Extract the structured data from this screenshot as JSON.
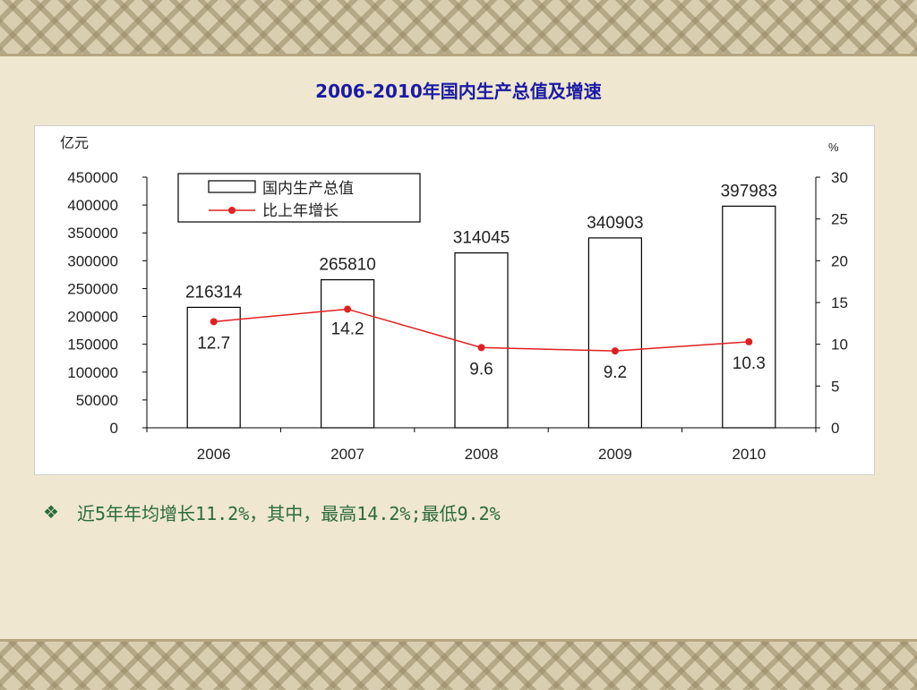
{
  "slide": {
    "title": "2006-2010年国内生产总值及增速",
    "bullet_text": "近5年年均增长11.2%，其中，最高14.2%;最低9.2%"
  },
  "chart_data": {
    "type": "bar",
    "categories": [
      "2006",
      "2007",
      "2008",
      "2009",
      "2010"
    ],
    "series": [
      {
        "name": "国内生产总值",
        "type": "bar",
        "axis": "left",
        "values": [
          216314,
          265810,
          314045,
          340903,
          397983
        ]
      },
      {
        "name": "比上年增长",
        "type": "line",
        "axis": "right",
        "values": [
          12.7,
          14.2,
          9.6,
          9.2,
          10.3
        ],
        "color": "#e02020"
      }
    ],
    "ylabel_left": "亿元",
    "ylabel_right": "%",
    "ylim_left": [
      0,
      450000
    ],
    "ylim_right": [
      0,
      30
    ],
    "yticks_left": [
      "450000",
      "400000",
      "350000",
      "300000",
      "250000",
      "200000",
      "150000",
      "100000",
      "50000",
      "0"
    ],
    "yticks_right": [
      "30",
      "25",
      "20",
      "15",
      "10",
      "5",
      "0"
    ],
    "legend_position": "top-left",
    "grid": false
  }
}
